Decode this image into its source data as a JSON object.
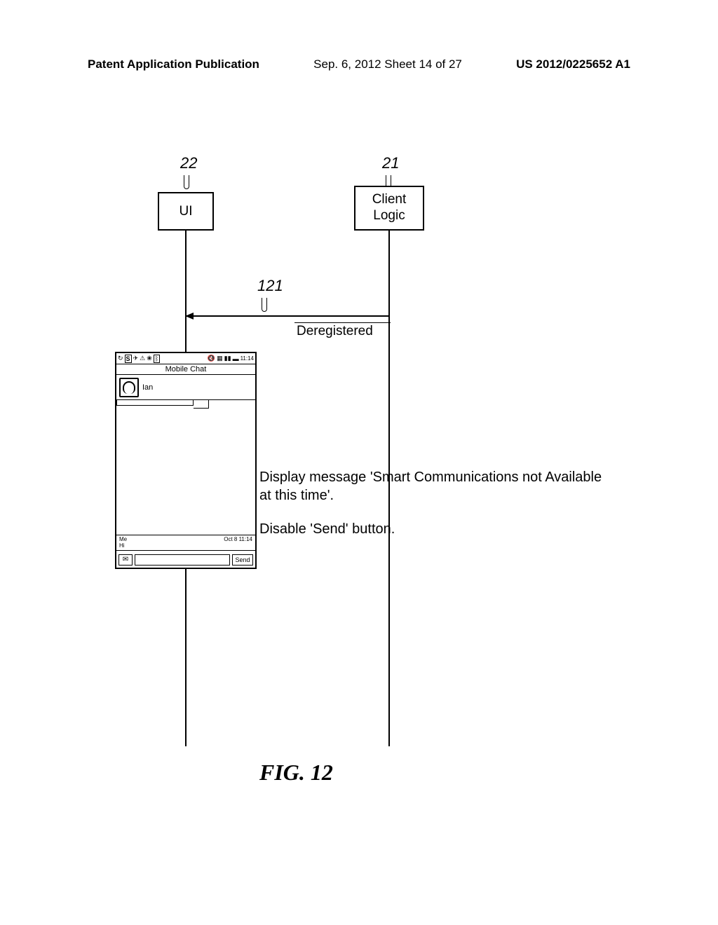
{
  "header": {
    "left": "Patent Application Publication",
    "center": "Sep. 6, 2012   Sheet 14 of 27",
    "right": "US 2012/0225652 A1"
  },
  "refs": {
    "r22": "22",
    "r21": "21",
    "r121": "121"
  },
  "boxes": {
    "ui": "UI",
    "client": "Client\nLogic"
  },
  "messages": {
    "deregistered": "Deregistered"
  },
  "annotations": {
    "a1": "Display message 'Smart Communications not Available at this time'.",
    "a2": "Disable 'Send' button."
  },
  "figure": "FIG. 12",
  "phone": {
    "status_time": "11:14",
    "title": "Mobile Chat",
    "contact": "Ian",
    "msg_from": "Me",
    "msg_time": "Oct 8 11:14",
    "msg_text": "Hi",
    "send": "Send"
  }
}
